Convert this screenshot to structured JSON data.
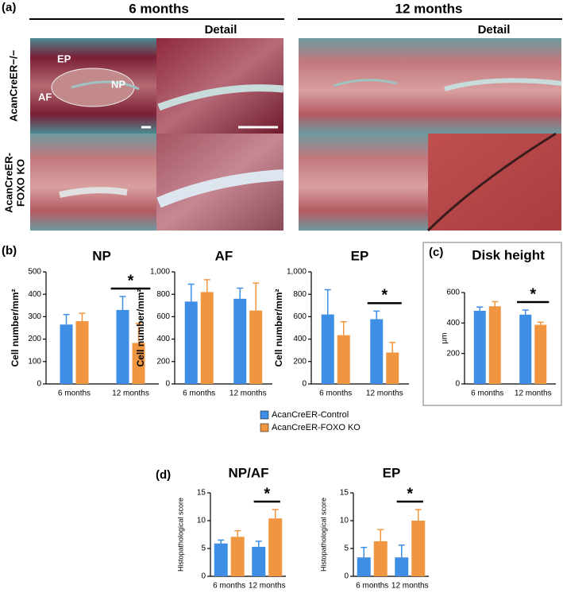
{
  "panel_labels": [
    "(a)",
    "(b)",
    "(c)",
    "(d)"
  ],
  "panel_a": {
    "columns": [
      "6 months",
      "12 months"
    ],
    "detail": [
      "Detail",
      "Detail"
    ],
    "row_labels": [
      [
        "AcanCreER−/−"
      ],
      [
        "AcanCreER-",
        "FOXO KO"
      ]
    ],
    "image_labels": [
      "EP",
      "AF",
      "NP"
    ]
  },
  "chart_data": [
    {
      "type": "bar",
      "title": "NP",
      "ylabel": "Cell number/mm²",
      "categories": [
        "6 months",
        "12 months"
      ],
      "series": [
        {
          "name": "AcanCreER-Control",
          "color": "#3f8ee6",
          "values": [
            265,
            330
          ],
          "errors": [
            45,
            60
          ]
        },
        {
          "name": "AcanCreER-FOXO KO",
          "color": "#f19640",
          "values": [
            280,
            183
          ],
          "errors": [
            35,
            87
          ]
        }
      ],
      "ylim": [
        0,
        500
      ],
      "yticks": [
        0,
        100,
        200,
        300,
        400,
        500
      ],
      "annotation": "*"
    },
    {
      "type": "bar",
      "title": "AF",
      "ylabel": "Cell number/mm²",
      "categories": [
        "6 months",
        "12 months"
      ],
      "series": [
        {
          "color": "#3f8ee6",
          "values": [
            735,
            760
          ],
          "errors": [
            155,
            95
          ]
        },
        {
          "color": "#f19640",
          "values": [
            820,
            655
          ],
          "errors": [
            110,
            245
          ]
        }
      ],
      "ylim": [
        0,
        1000
      ],
      "yticks": [
        0,
        200,
        400,
        600,
        800,
        {
          "value": 1000,
          "label": "1,000"
        }
      ]
    },
    {
      "type": "bar",
      "title": "EP",
      "ylabel": "Cell number/mm²",
      "categories": [
        "6 months",
        "12 months"
      ],
      "series": [
        {
          "color": "#3f8ee6",
          "values": [
            620,
            578
          ],
          "errors": [
            220,
            72
          ]
        },
        {
          "color": "#f19640",
          "values": [
            435,
            280
          ],
          "errors": [
            120,
            90
          ]
        }
      ],
      "ylim": [
        0,
        1000
      ],
      "yticks": [
        0,
        200,
        400,
        600,
        800,
        {
          "value": 1000,
          "label": "1,000"
        }
      ],
      "annotation": "*"
    },
    {
      "type": "bar",
      "title": "Disk height",
      "ylabel": "µm",
      "categories": [
        "6 months",
        "12 months"
      ],
      "series": [
        {
          "color": "#3f8ee6",
          "values": [
            480,
            455
          ],
          "errors": [
            25,
            30
          ]
        },
        {
          "color": "#f19640",
          "values": [
            510,
            388
          ],
          "errors": [
            30,
            17
          ]
        }
      ],
      "ylim": [
        0,
        600
      ],
      "yticks": [
        0,
        200,
        400,
        600
      ],
      "annotation": "*"
    },
    {
      "type": "bar",
      "title": "NP/AF",
      "ylabel": "Histopathological score",
      "categories": [
        "6 months",
        "12 months"
      ],
      "series": [
        {
          "color": "#3f8ee6",
          "values": [
            5.9,
            5.3
          ],
          "errors": [
            0.6,
            1.0
          ]
        },
        {
          "color": "#f19640",
          "values": [
            7.1,
            10.4
          ],
          "errors": [
            1.1,
            1.6
          ]
        }
      ],
      "ylim": [
        0,
        15
      ],
      "yticks": [
        0,
        5,
        10,
        15
      ],
      "annotation": "*"
    },
    {
      "type": "bar",
      "title": "EP",
      "ylabel": "Histopathological score",
      "categories": [
        "6 months",
        "12 months"
      ],
      "series": [
        {
          "color": "#3f8ee6",
          "values": [
            3.4,
            3.4
          ],
          "errors": [
            1.8,
            2.2
          ]
        },
        {
          "color": "#f19640",
          "values": [
            6.3,
            10.0
          ],
          "errors": [
            2.1,
            2.0
          ]
        }
      ],
      "ylim": [
        0,
        15
      ],
      "yticks": [
        0,
        5,
        10,
        15
      ],
      "annotation": "*"
    }
  ]
}
